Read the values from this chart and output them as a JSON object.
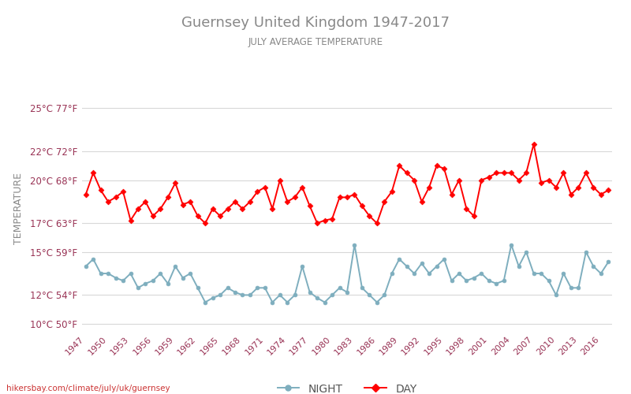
{
  "title": "Guernsey United Kingdom 1947-2017",
  "subtitle": "JULY AVERAGE TEMPERATURE",
  "ylabel": "TEMPERATURE",
  "watermark": "hikersbay.com/climate/july/uk/guernsey",
  "legend_night": "NIGHT",
  "legend_day": "DAY",
  "years": [
    1947,
    1948,
    1949,
    1950,
    1951,
    1952,
    1953,
    1954,
    1955,
    1956,
    1957,
    1958,
    1959,
    1960,
    1961,
    1962,
    1963,
    1964,
    1965,
    1966,
    1967,
    1968,
    1969,
    1970,
    1971,
    1972,
    1973,
    1974,
    1975,
    1976,
    1977,
    1978,
    1979,
    1980,
    1981,
    1982,
    1983,
    1984,
    1985,
    1986,
    1987,
    1988,
    1989,
    1990,
    1991,
    1992,
    1993,
    1994,
    1995,
    1996,
    1997,
    1998,
    1999,
    2000,
    2001,
    2002,
    2003,
    2004,
    2005,
    2006,
    2007,
    2008,
    2009,
    2010,
    2011,
    2012,
    2013,
    2014,
    2015,
    2016,
    2017
  ],
  "day_temps": [
    19.0,
    20.5,
    19.3,
    18.5,
    18.8,
    19.2,
    17.2,
    18.0,
    18.5,
    17.5,
    18.0,
    18.8,
    19.8,
    18.3,
    18.5,
    17.5,
    17.0,
    18.0,
    17.5,
    18.0,
    18.5,
    18.0,
    18.5,
    19.2,
    19.5,
    18.0,
    20.0,
    18.5,
    18.8,
    19.5,
    18.2,
    17.0,
    17.2,
    17.3,
    18.8,
    18.8,
    19.0,
    18.2,
    17.5,
    17.0,
    18.5,
    19.2,
    21.0,
    20.5,
    20.0,
    18.5,
    19.5,
    21.0,
    20.8,
    19.0,
    20.0,
    18.0,
    17.5,
    20.0,
    20.2,
    20.5,
    20.5,
    20.5,
    20.0,
    20.5,
    22.5,
    19.8,
    20.0,
    19.5,
    20.5,
    19.0,
    19.5,
    20.5,
    19.5,
    19.0,
    19.3
  ],
  "night_temps": [
    14.0,
    14.5,
    13.5,
    13.5,
    13.2,
    13.0,
    13.5,
    12.5,
    12.8,
    13.0,
    13.5,
    12.8,
    14.0,
    13.2,
    13.5,
    12.5,
    11.5,
    11.8,
    12.0,
    12.5,
    12.2,
    12.0,
    12.0,
    12.5,
    12.5,
    11.5,
    12.0,
    11.5,
    12.0,
    14.0,
    12.2,
    11.8,
    11.5,
    12.0,
    12.5,
    12.2,
    15.5,
    12.5,
    12.0,
    11.5,
    12.0,
    13.5,
    14.5,
    14.0,
    13.5,
    14.2,
    13.5,
    14.0,
    14.5,
    13.0,
    13.5,
    13.0,
    13.2,
    13.5,
    13.0,
    12.8,
    13.0,
    15.5,
    14.0,
    15.0,
    13.5,
    13.5,
    13.0,
    12.0,
    13.5,
    12.5,
    12.5,
    15.0,
    14.0,
    13.5,
    14.3
  ],
  "yticks_c": [
    10,
    12,
    15,
    17,
    20,
    22,
    25
  ],
  "yticks_f": [
    50,
    54,
    59,
    63,
    68,
    72,
    77
  ],
  "ylim": [
    9.5,
    26.5
  ],
  "xlim": [
    1946.5,
    2017.5
  ],
  "xtick_years": [
    1947,
    1950,
    1953,
    1956,
    1959,
    1962,
    1965,
    1968,
    1971,
    1974,
    1977,
    1980,
    1983,
    1986,
    1989,
    1992,
    1995,
    1998,
    2001,
    2004,
    2007,
    2010,
    2013,
    2016
  ],
  "day_color": "#ff0000",
  "night_color": "#7eaebe",
  "title_color": "#888888",
  "subtitle_color": "#888888",
  "ylabel_color": "#888888",
  "tick_color": "#993355",
  "grid_color": "#d8d8d8",
  "background_color": "#ffffff",
  "watermark_color": "#cc3333",
  "marker_size": 3.5,
  "linewidth": 1.4
}
